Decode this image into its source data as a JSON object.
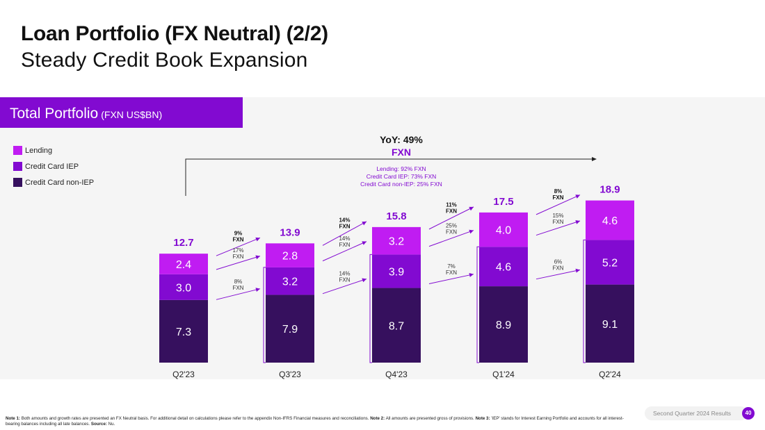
{
  "title": "Loan Portfolio (FX Neutral) (2/2)",
  "subtitle": "Steady Credit Book Expansion",
  "section": {
    "label": "Total Portfolio",
    "unit": "(FXN US$BN)"
  },
  "colors": {
    "lending": "#c01cf2",
    "credit_card_iep": "#820ad1",
    "credit_card_non_iep": "#36105e",
    "accent": "#820ad1"
  },
  "legend": [
    {
      "label": "Lending",
      "color": "#c01cf2"
    },
    {
      "label": "Credit Card IEP",
      "color": "#820ad1"
    },
    {
      "label": "Credit Card non-IEP",
      "color": "#36105e"
    }
  ],
  "yoy": {
    "title": "YoY: 49%",
    "fxn": "FXN",
    "details": [
      "Lending: 92% FXN",
      "Credit Card IEP: 73% FXN",
      "Credit Card non-IEP: 25% FXN"
    ]
  },
  "chart_data": {
    "type": "bar",
    "stacked": true,
    "categories": [
      "Q2'23",
      "Q3'23",
      "Q4'23",
      "Q1'24",
      "Q2'24"
    ],
    "series": [
      {
        "name": "Credit Card non-IEP",
        "values": [
          7.3,
          7.9,
          8.7,
          8.9,
          9.1
        ]
      },
      {
        "name": "Credit Card IEP",
        "values": [
          3.0,
          3.2,
          3.9,
          4.6,
          5.2
        ]
      },
      {
        "name": "Lending",
        "values": [
          2.4,
          2.8,
          3.2,
          4.0,
          4.6
        ]
      }
    ],
    "totals": [
      "12.7",
      "13.9",
      "15.8",
      "17.5",
      "18.9"
    ],
    "segment_labels": [
      [
        "7.3",
        "7.9",
        "8.7",
        "8.9",
        "9.1"
      ],
      [
        "3.0",
        "3.2",
        "3.9",
        "4.6",
        "5.2"
      ],
      [
        "2.4",
        "2.8",
        "3.2",
        "4.0",
        "4.6"
      ]
    ],
    "growth": [
      {
        "total": "9%\nFXN",
        "lending": "17%\nFXN",
        "cc_iep": "8%\nFXN"
      },
      {
        "total": "14%\nFXN",
        "lending": "14%\nFXN",
        "cc_iep": "14%\nFXN"
      },
      {
        "total": "11%\nFXN",
        "lending": "25%\nFXN",
        "cc_iep": "7%\nFXN"
      },
      {
        "total": "8%\nFXN",
        "lending": "15%\nFXN",
        "cc_iep": "6%\nFXN"
      }
    ],
    "title": "",
    "xlabel": "",
    "ylabel": ""
  },
  "footer": {
    "note1_label": "Note 1:",
    "note1": "Both amounts and growth rates are presented an FX Neutral basis. For additional detail on calculations please refer to the appendix Non-IFRS Financial measures and reconciliations.",
    "note2_label": "Note 2:",
    "note2": "All amounts are presented gross of provisions.",
    "note3_label": "Note 3:",
    "note3": "'IEP' stands for Interest Earning Portfolio and accounts for all interest-bearing balances including all late balances.",
    "source_label": "Source:",
    "source": "Nu.",
    "results_label": "Second Quarter 2024 Results",
    "page_number": "40"
  }
}
